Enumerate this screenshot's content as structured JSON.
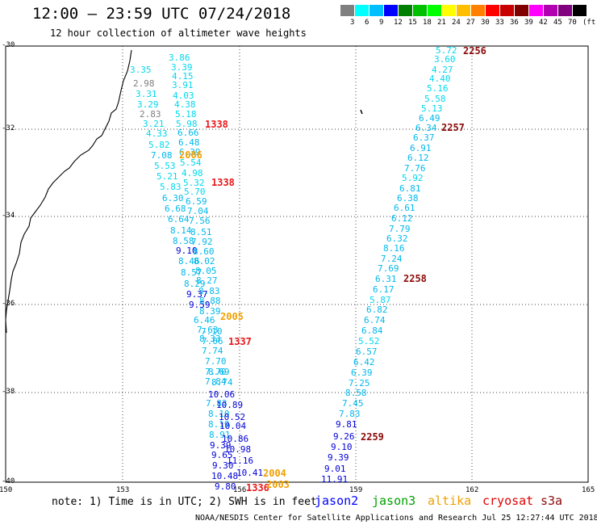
{
  "header": {
    "title": "12:00 – 23:59 UTC 07/24/2018",
    "subtitle": "12 hour collection of altimeter wave heights"
  },
  "scale": {
    "colors": [
      "#7f7f7f",
      "#00ffff",
      "#00bfff",
      "#0000ff",
      "#008000",
      "#00c000",
      "#00ff00",
      "#ffff00",
      "#ffbf00",
      "#ff8000",
      "#ff0000",
      "#c80000",
      "#800000",
      "#ff00ff",
      "#b000b0",
      "#800080",
      "#000000"
    ],
    "ticks": [
      "3",
      "6",
      "9",
      "12",
      "15",
      "18",
      "21",
      "24",
      "27",
      "30",
      "33",
      "36",
      "39",
      "42",
      "45",
      "70",
      "(ft)"
    ]
  },
  "axes": {
    "lat_labels": [
      "-30",
      "-32",
      "-34",
      "-36",
      "-38",
      "-40"
    ],
    "lon_labels": [
      "150",
      "153",
      "156",
      "159",
      "162",
      "165"
    ]
  },
  "tracks": [
    {
      "time": "1338",
      "time_color": "#e8171a",
      "values": [
        [
          "3.35",
          "#00d8ef"
        ],
        [
          "2.98",
          "#7f7f7f"
        ],
        [
          "3.31",
          "#00d8ef"
        ],
        [
          "3.29",
          "#00d8ef"
        ],
        [
          "2.83",
          "#7f7f7f"
        ],
        [
          "3.21",
          "#00d8ef"
        ],
        [
          "4.33",
          "#00d8ef"
        ],
        [
          "5.82",
          "#00d8ef"
        ],
        [
          "7.08",
          "#00b8ec"
        ],
        [
          "5.53",
          "#00d8ef"
        ],
        [
          "5.21",
          "#00d8ef"
        ],
        [
          "5.83",
          "#00d8ef"
        ],
        [
          "6.30",
          "#00b8ec"
        ],
        [
          "6.68",
          "#00b8ec"
        ],
        [
          "6.64",
          "#00b8ec"
        ],
        [
          "8.14",
          "#00b8ec"
        ],
        [
          "8.58",
          "#00b8ec"
        ],
        [
          "9.10",
          "#0000d8"
        ],
        [
          "8.46",
          "#00b8ec"
        ],
        [
          "8.57",
          "#00b8ec"
        ],
        [
          "8.29",
          "#00b8ec"
        ],
        [
          "9.37",
          "#0000d8"
        ],
        [
          "9.59",
          "#0000d8"
        ]
      ]
    },
    {
      "time": "1338",
      "time_color": "#e8171a",
      "values": [
        [
          "3.86",
          "#00d8ef"
        ],
        [
          "3.39",
          "#00d8ef"
        ],
        [
          "4.15",
          "#00d8ef"
        ],
        [
          "3.91",
          "#00d8ef"
        ],
        [
          "4.03",
          "#00d8ef"
        ],
        [
          "4.38",
          "#00d8ef"
        ],
        [
          "5.18",
          "#00d8ef"
        ],
        [
          "5.98",
          "#00d8ef"
        ],
        [
          "6.66",
          "#00b8ec"
        ],
        [
          "6.48",
          "#00b8ec"
        ],
        [
          "6.39",
          "#00b8ec"
        ],
        [
          "5.54",
          "#00d8ef"
        ],
        [
          "4.98",
          "#00d8ef"
        ],
        [
          "5.32",
          "#00d8ef"
        ],
        [
          "5.70",
          "#00d8ef"
        ],
        [
          "6.59",
          "#00b8ec"
        ],
        [
          "7.04",
          "#00b8ec"
        ],
        [
          "7.56",
          "#00b8ec"
        ],
        [
          "8.51",
          "#00b8ec"
        ],
        [
          "7.92",
          "#00b8ec"
        ],
        [
          "8.60",
          "#00b8ec"
        ],
        [
          "8.02",
          "#00b8ec"
        ],
        [
          "8.05",
          "#00b8ec"
        ],
        [
          "8.27",
          "#00b8ec"
        ]
      ]
    },
    {
      "time": "1337",
      "time_color": "#e8171a",
      "values": [
        [
          "8.83",
          "#00b8ec"
        ],
        [
          "8.88",
          "#00b8ec"
        ],
        [
          "8.39",
          "#00b8ec"
        ],
        [
          "6.46",
          "#00b8ec"
        ],
        [
          "7.63",
          "#00b8ec"
        ],
        [
          "7.10",
          "#00b8ec"
        ],
        [
          "8.33",
          "#00b8ec"
        ],
        [
          "7.06",
          "#00b8ec"
        ],
        [
          "7.74",
          "#00b8ec"
        ],
        [
          "7.70",
          "#00b8ec"
        ],
        [
          "7.70",
          "#00b8ec"
        ],
        [
          "8.69",
          "#00b8ec"
        ],
        [
          "7.84",
          "#00b8ec"
        ],
        [
          "8.74",
          "#00b8ec"
        ],
        [
          "10.06",
          "#0000d8"
        ],
        [
          "7.83",
          "#00b8ec"
        ],
        [
          "10.89",
          "#0000d8"
        ],
        [
          "8.10",
          "#00b8ec"
        ],
        [
          "10.52",
          "#0000d8"
        ],
        [
          "8.19",
          "#00b8ec"
        ],
        [
          "10.04",
          "#0000d8"
        ],
        [
          "8.91",
          "#00b8ec"
        ],
        [
          "10.86",
          "#0000d8"
        ],
        [
          "9.39",
          "#0000d8"
        ],
        [
          "10.98",
          "#0000d8"
        ],
        [
          "9.65",
          "#0000d8"
        ],
        [
          "11.16",
          "#0000d8"
        ],
        [
          "9.30",
          "#0000d8"
        ],
        [
          "10.41",
          "#0000d8"
        ],
        [
          "10.48",
          "#0000d8"
        ],
        [
          "9.80",
          "#0000d8"
        ]
      ]
    },
    {
      "time": "1336",
      "time_color": "#e8171a",
      "values": []
    },
    {
      "time": "2256",
      "time_color": "#8b0a0a",
      "values": [
        [
          "5.72",
          "#00d8ef"
        ],
        [
          "3.60",
          "#00d8ef"
        ],
        [
          "4.27",
          "#00d8ef"
        ],
        [
          "4.40",
          "#00d8ef"
        ],
        [
          "5.16",
          "#00d8ef"
        ],
        [
          "5.58",
          "#00d8ef"
        ],
        [
          "5.13",
          "#00d8ef"
        ],
        [
          "6.49",
          "#00b8ec"
        ]
      ]
    },
    {
      "time": "2257",
      "time_color": "#8b0a0a",
      "values": [
        [
          "6.34",
          "#00b8ec"
        ],
        [
          "6.37",
          "#00b8ec"
        ],
        [
          "6.91",
          "#00b8ec"
        ],
        [
          "6.12",
          "#00b8ec"
        ],
        [
          "7.76",
          "#00b8ec"
        ],
        [
          "5.92",
          "#00d8ef"
        ],
        [
          "6.81",
          "#00b8ec"
        ],
        [
          "6.38",
          "#00b8ec"
        ],
        [
          "6.61",
          "#00b8ec"
        ],
        [
          "6.12",
          "#00b8ec"
        ],
        [
          "7.79",
          "#00b8ec"
        ],
        [
          "6.32",
          "#00b8ec"
        ],
        [
          "8.16",
          "#00b8ec"
        ],
        [
          "7.24",
          "#00b8ec"
        ],
        [
          "7.69",
          "#00b8ec"
        ],
        [
          "6.31",
          "#00b8ec"
        ]
      ]
    },
    {
      "time": "2258",
      "time_color": "#8b0a0a",
      "values": [
        [
          "6.17",
          "#00b8ec"
        ],
        [
          "5.87",
          "#00d8ef"
        ],
        [
          "6.82",
          "#00b8ec"
        ],
        [
          "6.74",
          "#00b8ec"
        ],
        [
          "6.84",
          "#00b8ec"
        ],
        [
          "5.52",
          "#00d8ef"
        ],
        [
          "6.57",
          "#00b8ec"
        ],
        [
          "6.42",
          "#00b8ec"
        ],
        [
          "6.39",
          "#00b8ec"
        ],
        [
          "7.25",
          "#00b8ec"
        ],
        [
          "8.58",
          "#00b8ec"
        ],
        [
          "7.45",
          "#00b8ec"
        ],
        [
          "7.83",
          "#00b8ec"
        ]
      ]
    },
    {
      "time": "2259",
      "time_color": "#8b0a0a",
      "values": [
        [
          "9.81",
          "#0000d8"
        ],
        [
          "9.26",
          "#0000d8"
        ],
        [
          "9.10",
          "#0000d8"
        ],
        [
          "9.39",
          "#0000d8"
        ],
        [
          "9.01",
          "#0000d8"
        ],
        [
          "11.91",
          "#0000d8"
        ]
      ]
    },
    {
      "time": "2006",
      "time_color": "#f0a000",
      "values": []
    },
    {
      "time": "2005",
      "time_color": "#f0a000",
      "values": []
    },
    {
      "time": "2004",
      "time_color": "#f0a000",
      "values": []
    },
    {
      "time": "2003",
      "time_color": "#f0a000",
      "values": []
    }
  ],
  "footer": {
    "note": "note: 1) Time is in UTC; 2) SWH is in feet",
    "legend": [
      {
        "label": "jason2",
        "color": "#0000ff"
      },
      {
        "label": "jason3",
        "color": "#00a000"
      },
      {
        "label": "altika",
        "color": "#f0a000"
      },
      {
        "label": "cryosat",
        "color": "#e00000"
      },
      {
        "label": "s3a",
        "color": "#8b0a0a"
      }
    ],
    "credit": "NOAA/NESDIS Center for Satellite Applications and Research   Jul 25 12:27:44 UTC 2018"
  }
}
